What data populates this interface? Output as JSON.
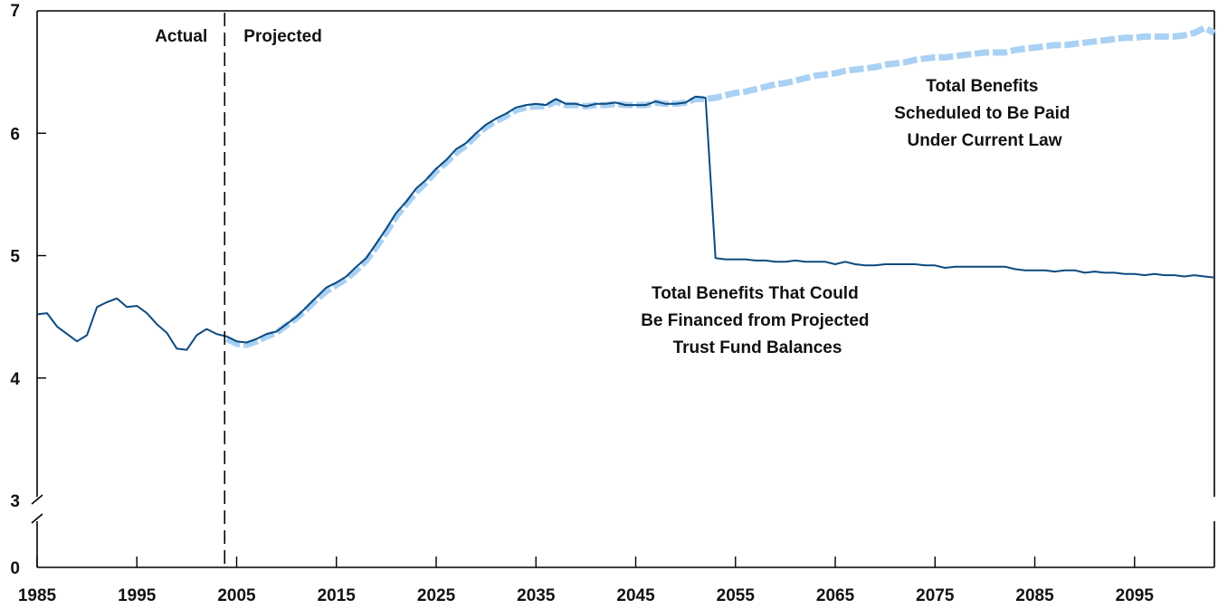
{
  "chart_data": {
    "type": "line",
    "title": "",
    "xlabel": "",
    "ylabel": "",
    "xlim": [
      1985,
      2103
    ],
    "ylim": [
      0,
      7
    ],
    "axis_break": [
      0,
      3
    ],
    "x_ticks": [
      1985,
      1995,
      2005,
      2015,
      2025,
      2035,
      2045,
      2055,
      2065,
      2075,
      2085,
      2095
    ],
    "x_tick_labels": [
      "1985",
      "1995",
      "2005",
      "2015",
      "2025",
      "2035",
      "2045",
      "2055",
      "2065",
      "2075",
      "2085",
      "2095"
    ],
    "y_ticks": [
      0,
      3,
      4,
      5,
      6,
      7
    ],
    "y_tick_labels": [
      "0",
      "3",
      "4",
      "5",
      "6",
      "7"
    ],
    "grid": false,
    "divider": {
      "x": 2003.8,
      "left_label": "Actual",
      "right_label": "Projected"
    },
    "annotations": {
      "scheduled": [
        "Total Benefits",
        "Scheduled to Be Paid",
        "Under Current Law"
      ],
      "financed": [
        "Total Benefits That Could",
        "Be Financed from Projected",
        "Trust Fund Balances"
      ]
    },
    "series": [
      {
        "id": "financed",
        "color": "#0d4a80",
        "style": "solid",
        "points": [
          [
            1985,
            4.52
          ],
          [
            1986,
            4.53
          ],
          [
            1987,
            4.42
          ],
          [
            1988,
            4.36
          ],
          [
            1989,
            4.3
          ],
          [
            1990,
            4.35
          ],
          [
            1991,
            4.58
          ],
          [
            1992,
            4.62
          ],
          [
            1993,
            4.65
          ],
          [
            1994,
            4.58
          ],
          [
            1995,
            4.59
          ],
          [
            1996,
            4.53
          ],
          [
            1997,
            4.44
          ],
          [
            1998,
            4.37
          ],
          [
            1999,
            4.24
          ],
          [
            2000,
            4.23
          ],
          [
            2001,
            4.35
          ],
          [
            2002,
            4.4
          ],
          [
            2003,
            4.36
          ],
          [
            2004,
            4.34
          ],
          [
            2005,
            4.3
          ],
          [
            2006,
            4.29
          ],
          [
            2007,
            4.32
          ],
          [
            2008,
            4.36
          ],
          [
            2009,
            4.38
          ],
          [
            2010,
            4.44
          ],
          [
            2011,
            4.5
          ],
          [
            2012,
            4.58
          ],
          [
            2013,
            4.66
          ],
          [
            2014,
            4.74
          ],
          [
            2015,
            4.78
          ],
          [
            2016,
            4.83
          ],
          [
            2017,
            4.91
          ],
          [
            2018,
            4.98
          ],
          [
            2019,
            5.1
          ],
          [
            2020,
            5.22
          ],
          [
            2021,
            5.35
          ],
          [
            2022,
            5.44
          ],
          [
            2023,
            5.55
          ],
          [
            2024,
            5.62
          ],
          [
            2025,
            5.71
          ],
          [
            2026,
            5.78
          ],
          [
            2027,
            5.87
          ],
          [
            2028,
            5.92
          ],
          [
            2029,
            6.0
          ],
          [
            2030,
            6.07
          ],
          [
            2031,
            6.12
          ],
          [
            2032,
            6.16
          ],
          [
            2033,
            6.21
          ],
          [
            2034,
            6.23
          ],
          [
            2035,
            6.24
          ],
          [
            2036,
            6.23
          ],
          [
            2037,
            6.28
          ],
          [
            2038,
            6.24
          ],
          [
            2039,
            6.24
          ],
          [
            2040,
            6.22
          ],
          [
            2041,
            6.24
          ],
          [
            2042,
            6.24
          ],
          [
            2043,
            6.25
          ],
          [
            2044,
            6.23
          ],
          [
            2045,
            6.23
          ],
          [
            2046,
            6.23
          ],
          [
            2047,
            6.26
          ],
          [
            2048,
            6.24
          ],
          [
            2049,
            6.24
          ],
          [
            2050,
            6.25
          ],
          [
            2051,
            6.3
          ],
          [
            2052,
            6.29
          ],
          [
            2053,
            4.98
          ],
          [
            2054,
            4.97
          ],
          [
            2055,
            4.97
          ],
          [
            2056,
            4.97
          ],
          [
            2057,
            4.96
          ],
          [
            2058,
            4.96
          ],
          [
            2059,
            4.95
          ],
          [
            2060,
            4.95
          ],
          [
            2061,
            4.96
          ],
          [
            2062,
            4.95
          ],
          [
            2063,
            4.95
          ],
          [
            2064,
            4.95
          ],
          [
            2065,
            4.93
          ],
          [
            2066,
            4.95
          ],
          [
            2067,
            4.93
          ],
          [
            2068,
            4.92
          ],
          [
            2069,
            4.92
          ],
          [
            2070,
            4.93
          ],
          [
            2071,
            4.93
          ],
          [
            2072,
            4.93
          ],
          [
            2073,
            4.93
          ],
          [
            2074,
            4.92
          ],
          [
            2075,
            4.92
          ],
          [
            2076,
            4.9
          ],
          [
            2077,
            4.91
          ],
          [
            2078,
            4.91
          ],
          [
            2079,
            4.91
          ],
          [
            2080,
            4.91
          ],
          [
            2081,
            4.91
          ],
          [
            2082,
            4.91
          ],
          [
            2083,
            4.89
          ],
          [
            2084,
            4.88
          ],
          [
            2085,
            4.88
          ],
          [
            2086,
            4.88
          ],
          [
            2087,
            4.87
          ],
          [
            2088,
            4.88
          ],
          [
            2089,
            4.88
          ],
          [
            2090,
            4.86
          ],
          [
            2091,
            4.87
          ],
          [
            2092,
            4.86
          ],
          [
            2093,
            4.86
          ],
          [
            2094,
            4.85
          ],
          [
            2095,
            4.85
          ],
          [
            2096,
            4.84
          ],
          [
            2097,
            4.85
          ],
          [
            2098,
            4.84
          ],
          [
            2099,
            4.84
          ],
          [
            2100,
            4.83
          ],
          [
            2101,
            4.84
          ],
          [
            2102,
            4.83
          ],
          [
            2103,
            4.82
          ]
        ]
      },
      {
        "id": "scheduled",
        "color": "#a9d1f4",
        "style": "dashed",
        "points": [
          [
            2004,
            4.32
          ],
          [
            2005,
            4.28
          ],
          [
            2006,
            4.27
          ],
          [
            2007,
            4.3
          ],
          [
            2008,
            4.34
          ],
          [
            2009,
            4.37
          ],
          [
            2010,
            4.43
          ],
          [
            2011,
            4.49
          ],
          [
            2012,
            4.56
          ],
          [
            2013,
            4.64
          ],
          [
            2014,
            4.71
          ],
          [
            2015,
            4.76
          ],
          [
            2016,
            4.81
          ],
          [
            2017,
            4.88
          ],
          [
            2018,
            4.96
          ],
          [
            2019,
            5.07
          ],
          [
            2020,
            5.19
          ],
          [
            2021,
            5.32
          ],
          [
            2022,
            5.42
          ],
          [
            2023,
            5.52
          ],
          [
            2024,
            5.6
          ],
          [
            2025,
            5.69
          ],
          [
            2026,
            5.76
          ],
          [
            2027,
            5.84
          ],
          [
            2028,
            5.9
          ],
          [
            2029,
            5.98
          ],
          [
            2030,
            6.05
          ],
          [
            2031,
            6.1
          ],
          [
            2032,
            6.14
          ],
          [
            2033,
            6.19
          ],
          [
            2034,
            6.21
          ],
          [
            2035,
            6.22
          ],
          [
            2036,
            6.22
          ],
          [
            2037,
            6.26
          ],
          [
            2038,
            6.23
          ],
          [
            2039,
            6.23
          ],
          [
            2040,
            6.22
          ],
          [
            2041,
            6.23
          ],
          [
            2042,
            6.23
          ],
          [
            2043,
            6.24
          ],
          [
            2044,
            6.23
          ],
          [
            2045,
            6.23
          ],
          [
            2046,
            6.23
          ],
          [
            2047,
            6.25
          ],
          [
            2048,
            6.24
          ],
          [
            2049,
            6.24
          ],
          [
            2050,
            6.25
          ],
          [
            2051,
            6.28
          ],
          [
            2052,
            6.28
          ],
          [
            2053,
            6.29
          ],
          [
            2054,
            6.31
          ],
          [
            2055,
            6.33
          ],
          [
            2056,
            6.34
          ],
          [
            2057,
            6.36
          ],
          [
            2058,
            6.38
          ],
          [
            2059,
            6.4
          ],
          [
            2060,
            6.41
          ],
          [
            2061,
            6.43
          ],
          [
            2062,
            6.45
          ],
          [
            2063,
            6.47
          ],
          [
            2064,
            6.48
          ],
          [
            2065,
            6.49
          ],
          [
            2066,
            6.51
          ],
          [
            2067,
            6.52
          ],
          [
            2068,
            6.53
          ],
          [
            2069,
            6.54
          ],
          [
            2070,
            6.56
          ],
          [
            2071,
            6.57
          ],
          [
            2072,
            6.58
          ],
          [
            2073,
            6.6
          ],
          [
            2074,
            6.61
          ],
          [
            2075,
            6.62
          ],
          [
            2076,
            6.62
          ],
          [
            2077,
            6.63
          ],
          [
            2078,
            6.64
          ],
          [
            2079,
            6.65
          ],
          [
            2080,
            6.66
          ],
          [
            2081,
            6.66
          ],
          [
            2082,
            6.66
          ],
          [
            2083,
            6.68
          ],
          [
            2084,
            6.69
          ],
          [
            2085,
            6.7
          ],
          [
            2086,
            6.71
          ],
          [
            2087,
            6.72
          ],
          [
            2088,
            6.72
          ],
          [
            2089,
            6.73
          ],
          [
            2090,
            6.74
          ],
          [
            2091,
            6.75
          ],
          [
            2092,
            6.76
          ],
          [
            2093,
            6.77
          ],
          [
            2094,
            6.78
          ],
          [
            2095,
            6.78
          ],
          [
            2096,
            6.79
          ],
          [
            2097,
            6.79
          ],
          [
            2098,
            6.79
          ],
          [
            2099,
            6.79
          ],
          [
            2100,
            6.8
          ],
          [
            2101,
            6.82
          ],
          [
            2102,
            6.86
          ],
          [
            2103,
            6.82
          ]
        ]
      }
    ]
  }
}
